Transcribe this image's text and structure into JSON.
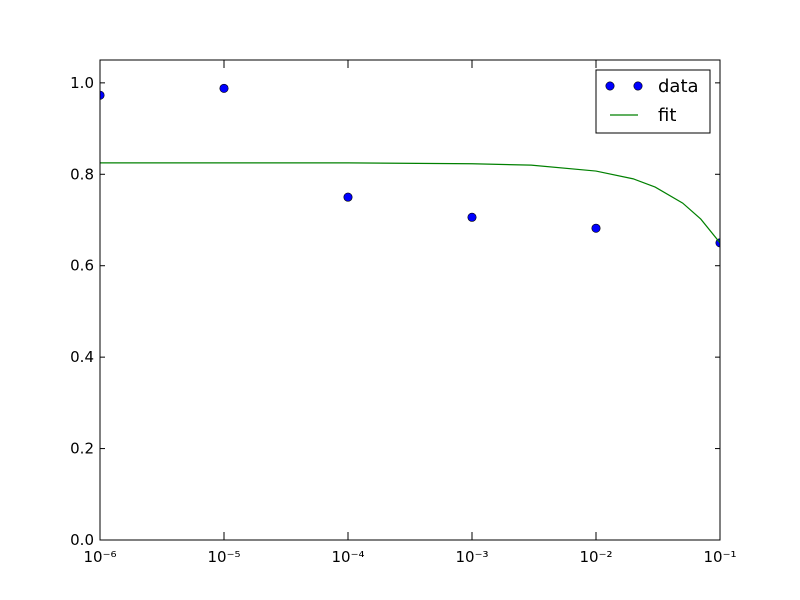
{
  "chart_data": {
    "type": "scatter-line",
    "xscale": "log",
    "xlim": [
      1e-06,
      0.1
    ],
    "ylim": [
      0,
      1.05
    ],
    "xticks": [
      {
        "value": 1e-06,
        "label": "10⁻⁶"
      },
      {
        "value": 1e-05,
        "label": "10⁻⁵"
      },
      {
        "value": 0.0001,
        "label": "10⁻⁴"
      },
      {
        "value": 0.001,
        "label": "10⁻³"
      },
      {
        "value": 0.01,
        "label": "10⁻²"
      },
      {
        "value": 0.1,
        "label": "10⁻¹"
      }
    ],
    "yticks": [
      {
        "value": 0,
        "label": "0.0"
      },
      0.2,
      0.4,
      0.6,
      0.8,
      {
        "value": 1,
        "label": "1.0"
      }
    ],
    "legend": "upper right",
    "series": [
      {
        "name": "data",
        "style": "markers",
        "color": "#0000ff",
        "x": [
          1e-06,
          1e-05,
          0.0001,
          0.001,
          0.01,
          0.1
        ],
        "values": [
          0.973,
          0.988,
          0.75,
          0.706,
          0.682,
          0.65
        ]
      },
      {
        "name": "fit",
        "style": "line",
        "color": "#008000",
        "x": [
          1e-06,
          1e-05,
          0.0001,
          0.001,
          0.003,
          0.01,
          0.02,
          0.03,
          0.05,
          0.07,
          0.1
        ],
        "values": [
          0.825,
          0.825,
          0.825,
          0.823,
          0.82,
          0.807,
          0.79,
          0.772,
          0.737,
          0.702,
          0.65
        ]
      }
    ]
  }
}
